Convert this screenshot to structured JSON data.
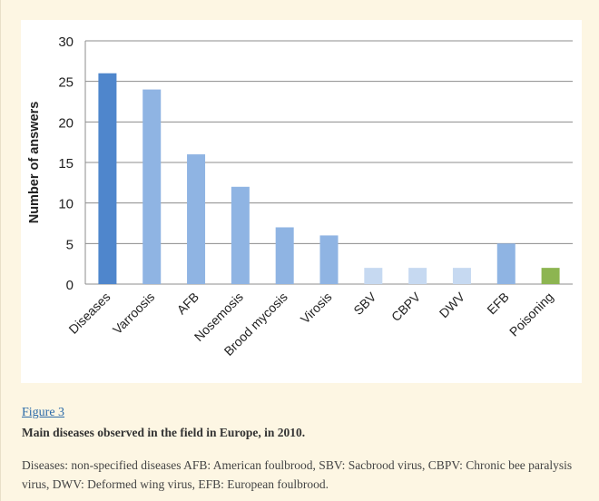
{
  "figure": {
    "link_text": "Figure 3",
    "title": "Main diseases observed in the field in Europe, in 2010.",
    "caption": "Diseases: non-specified diseases AFB: American foulbrood, SBV: Sacbrood virus, CBPV: Chronic bee paralysis virus, DWV: Deformed wing virus, EFB: European foulbrood."
  },
  "chart_data": {
    "type": "bar",
    "title": "",
    "xlabel": "",
    "ylabel": "Number of answers",
    "ylim": [
      0,
      30
    ],
    "yticks": [
      0,
      5,
      10,
      15,
      20,
      25,
      30
    ],
    "grid": true,
    "categories": [
      "Diseases",
      "Varroosis",
      "AFB",
      "Nosemosis",
      "Brood mycosis",
      "Virosis",
      "SBV",
      "CBPV",
      "DWV",
      "EFB",
      "Poisoning"
    ],
    "values": [
      26,
      24,
      16,
      12,
      7,
      6,
      2,
      2,
      2,
      5,
      2
    ],
    "bar_colors": [
      "#4f86cc",
      "#8fb4e3",
      "#8fb4e3",
      "#8fb4e3",
      "#8fb4e3",
      "#8fb4e3",
      "#c6d9f1",
      "#c6d9f1",
      "#c6d9f1",
      "#8fb4e3",
      "#8db551"
    ]
  }
}
